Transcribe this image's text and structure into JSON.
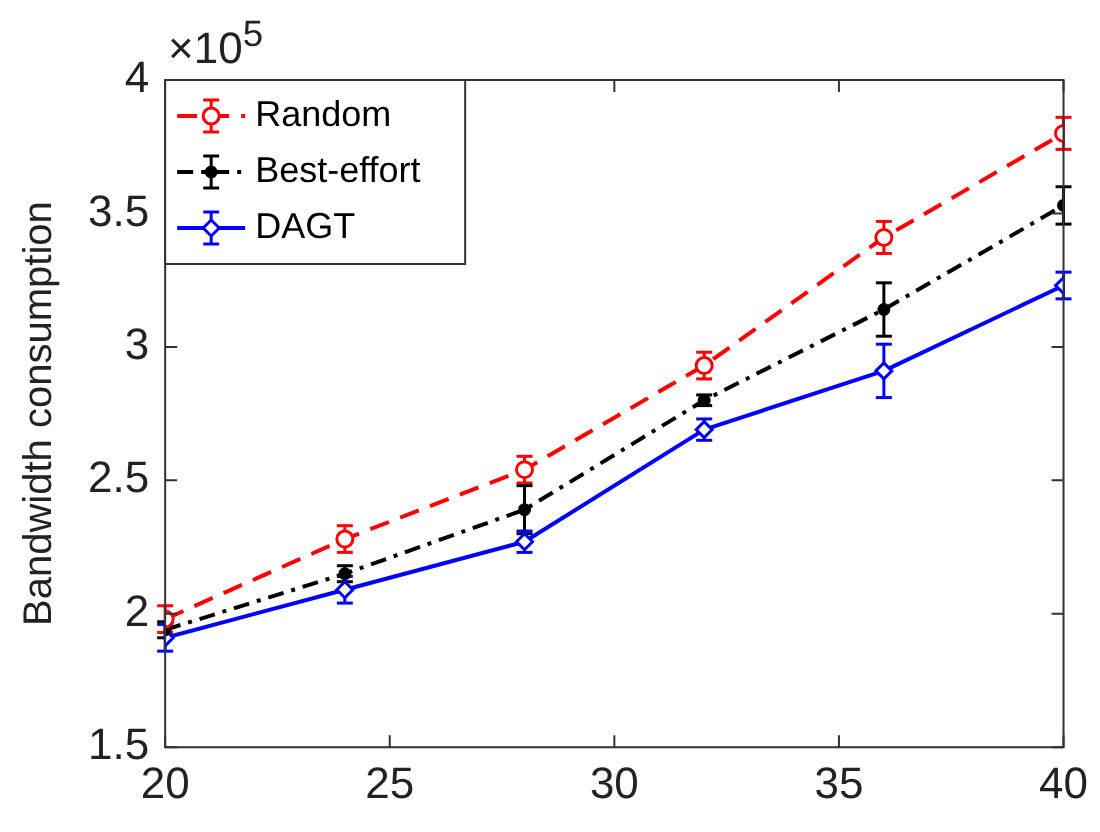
{
  "chart_data": {
    "type": "line",
    "ylabel": "Bandwidth consumption",
    "annotations": [
      "×10$^{5}$"
    ],
    "x": [
      20,
      24,
      28,
      32,
      36,
      40
    ],
    "xlim": [
      20,
      40
    ],
    "xticks": [
      20,
      25,
      30,
      35,
      40
    ],
    "ylim": [
      1.5,
      4
    ],
    "yticks": [
      1.5,
      2,
      2.5,
      3,
      3.5,
      4
    ],
    "grid": false,
    "legend": "top left",
    "series": [
      {
        "name": "Random",
        "color": "#ff0000",
        "marker": "circle",
        "line_style": "dashed",
        "values": [
          1.98,
          2.28,
          2.54,
          2.93,
          3.41,
          3.8
        ],
        "errors": [
          0.05,
          0.05,
          0.05,
          0.05,
          0.06,
          0.06
        ]
      },
      {
        "name": "Best-effort",
        "color": "#000000",
        "marker": "circle",
        "line_style": "dashdot",
        "values": [
          1.94,
          2.15,
          2.39,
          2.8,
          3.14,
          3.53
        ],
        "errors": [
          0.03,
          0.03,
          0.09,
          0.02,
          0.1,
          0.07
        ]
      },
      {
        "name": "DAGT",
        "color": "#0000ff",
        "marker": "diamond",
        "line_style": "solid",
        "values": [
          1.91,
          2.09,
          2.27,
          2.69,
          2.91,
          3.23
        ],
        "errors": [
          0.05,
          0.05,
          0.04,
          0.04,
          0.1,
          0.05
        ]
      }
    ]
  }
}
